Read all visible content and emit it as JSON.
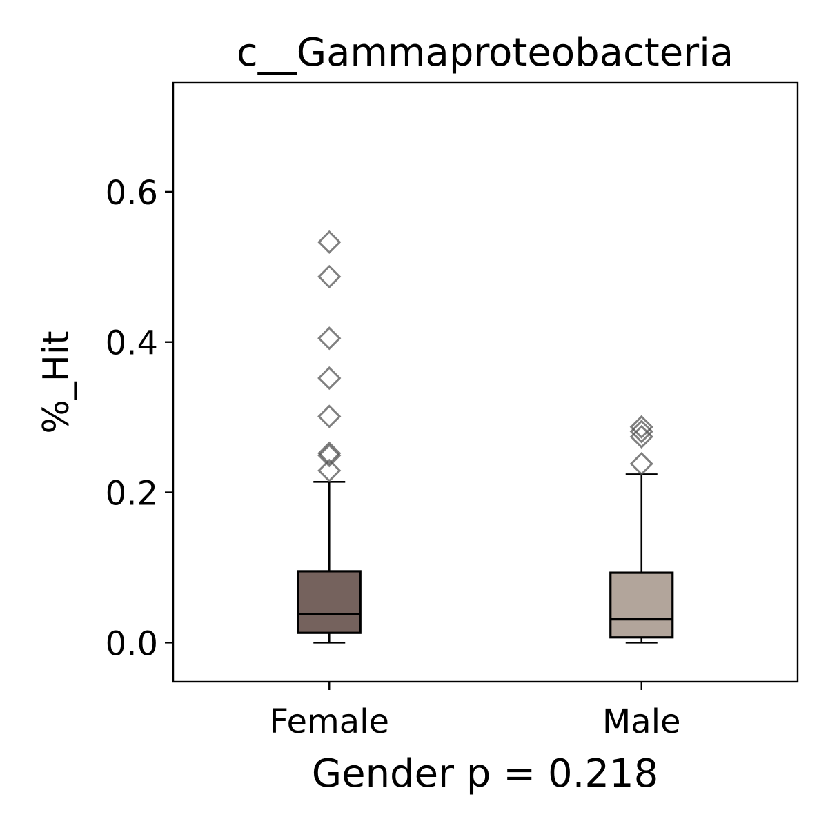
{
  "chart_data": {
    "type": "box",
    "title": "c__Gammaproteobacteria",
    "xlabel": "Gender p = 0.218",
    "ylabel": "%_Hit",
    "categories": [
      "Female",
      "Male"
    ],
    "ylim": [
      -0.052,
      0.745
    ],
    "yticks": [
      0.0,
      0.2,
      0.4,
      0.6
    ],
    "ytick_labels": [
      "0.0",
      "0.2",
      "0.4",
      "0.6"
    ],
    "grid": false,
    "series": [
      {
        "color": "#75625d",
        "whisker_low": 0.0,
        "q1": 0.013,
        "median": 0.038,
        "q3": 0.095,
        "whisker_high": 0.214,
        "outliers": [
          0.533,
          0.487,
          0.405,
          0.352,
          0.301,
          0.252,
          0.249,
          0.229
        ]
      },
      {
        "color": "#b2a59b",
        "whisker_low": 0.0,
        "q1": 0.007,
        "median": 0.031,
        "q3": 0.093,
        "whisker_high": 0.224,
        "outliers": [
          0.287,
          0.281,
          0.274,
          0.238
        ]
      }
    ],
    "outlier_marker": "diamond",
    "outlier_color": "#555555"
  }
}
